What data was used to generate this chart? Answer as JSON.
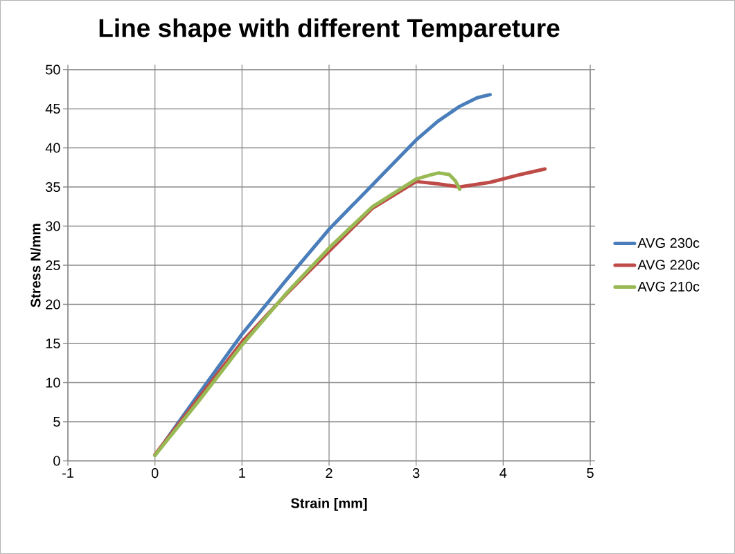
{
  "chart_data": {
    "type": "line",
    "title": "Line shape with different Tempareture",
    "xlabel": "Strain [mm]",
    "ylabel": "Stress N/mm",
    "xlim": [
      -1,
      5
    ],
    "xticks": [
      -1,
      0,
      1,
      2,
      3,
      4,
      5
    ],
    "ylim": [
      0,
      50
    ],
    "yticks": [
      0,
      5,
      10,
      15,
      20,
      25,
      30,
      35,
      40,
      45,
      50
    ],
    "grid": true,
    "legend": "right",
    "marker": "none",
    "line_style": "solid",
    "series": [
      {
        "name": "AVG 230c",
        "color": "#4a7ebb",
        "x": [
          0,
          0.5,
          1,
          1.5,
          2,
          2.5,
          3,
          3.25,
          3.5,
          3.7,
          3.85
        ],
        "values": [
          0.7,
          8.5,
          16.2,
          23,
          29.6,
          35.3,
          41,
          43.4,
          45.3,
          46.4,
          46.8
        ]
      },
      {
        "name": "AVG 220c",
        "color": "#be4b48",
        "x": [
          0,
          0.5,
          1,
          1.5,
          2,
          2.5,
          3,
          3.25,
          3.5,
          3.85,
          4.2,
          4.48
        ],
        "values": [
          0.8,
          8,
          15.2,
          21.2,
          26.8,
          32.3,
          35.7,
          35.4,
          35,
          35.6,
          36.6,
          37.3
        ]
      },
      {
        "name": "AVG 210c",
        "color": "#98b954",
        "x": [
          0,
          0.5,
          1,
          1.5,
          2,
          2.5,
          3,
          3.15,
          3.26,
          3.38,
          3.45,
          3.5
        ],
        "values": [
          0.7,
          7.6,
          14.8,
          21.3,
          27.2,
          32.5,
          36,
          36.5,
          36.8,
          36.6,
          35.8,
          34.7
        ]
      }
    ]
  }
}
